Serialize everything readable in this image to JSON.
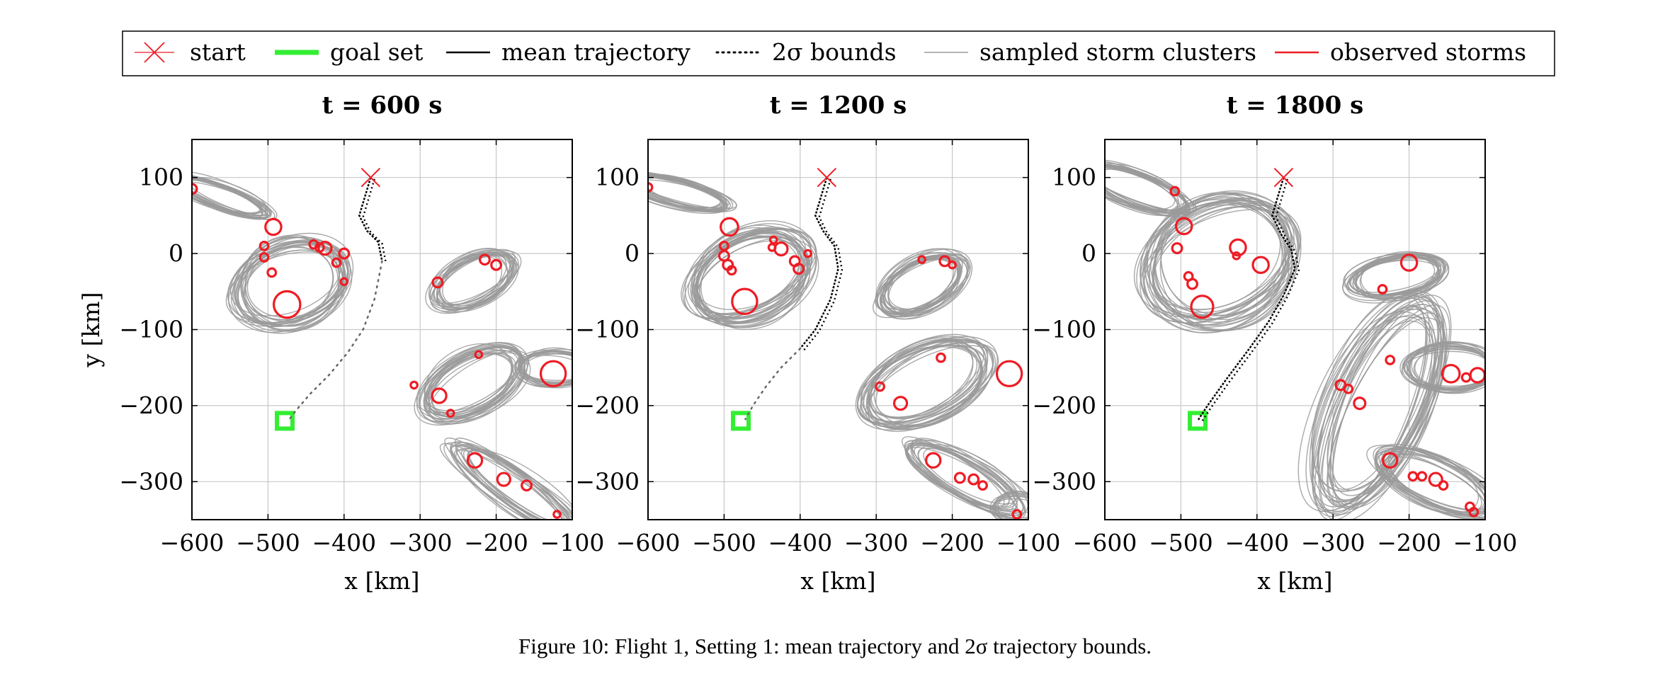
{
  "legend": [
    {
      "label": "start",
      "kind": "x-marker",
      "color": "#ee1c24"
    },
    {
      "label": "goal set",
      "kind": "thick-line",
      "color": "#33ee33"
    },
    {
      "label": "mean trajectory",
      "kind": "line",
      "color": "#000000"
    },
    {
      "label": "2σ bounds",
      "kind": "dotted",
      "color": "#000000"
    },
    {
      "label": "sampled storm clusters",
      "kind": "line",
      "color": "#9a9a9a"
    },
    {
      "label": "observed storms",
      "kind": "line",
      "color": "#ee1c24"
    }
  ],
  "colors": {
    "storm_cluster": "#9a9a9a",
    "observed": "#ee1c24",
    "goal": "#33ee33",
    "grid": "#c8c8c8"
  },
  "caption": "Figure 10: Flight 1, Setting 1: mean trajectory and 2σ trajectory bounds.",
  "chart_data": [
    {
      "type": "scatter",
      "title": "t = 600 s",
      "xlabel": "x [km]",
      "ylabel": "y [km]",
      "xlim": [
        -600,
        -100
      ],
      "ylim": [
        -350,
        150
      ],
      "xticks": [
        "−600",
        "−500",
        "−400",
        "−300",
        "−200",
        "−100"
      ],
      "yticks": [
        "100",
        "0",
        "−100",
        "−200",
        "−300"
      ],
      "grid": true,
      "start": [
        -365,
        100
      ],
      "goal": [
        -478,
        -220
      ],
      "mean_trajectory": [
        [
          -365,
          100
        ],
        [
          -380,
          50
        ],
        [
          -370,
          30
        ],
        [
          -355,
          15
        ],
        [
          -350,
          -10
        ]
      ],
      "bounds_dotted": [
        [
          -350,
          -10
        ],
        [
          -360,
          -60
        ],
        [
          -375,
          -100
        ],
        [
          -395,
          -130
        ],
        [
          -420,
          -160
        ],
        [
          -445,
          -185
        ],
        [
          -462,
          -205
        ],
        [
          -472,
          -218
        ]
      ],
      "storm_clusters": [
        {
          "cx": -560,
          "cy": 75,
          "rx": 65,
          "ry": 14,
          "angle": -20,
          "n": 18
        },
        {
          "cx": -470,
          "cy": -40,
          "rx": 72,
          "ry": 52,
          "angle": 20,
          "n": 24
        },
        {
          "cx": -230,
          "cy": -35,
          "rx": 55,
          "ry": 28,
          "angle": 28,
          "n": 20
        },
        {
          "cx": -230,
          "cy": -170,
          "rx": 70,
          "ry": 36,
          "angle": 28,
          "n": 22
        },
        {
          "cx": -125,
          "cy": -150,
          "rx": 45,
          "ry": 22,
          "angle": 0,
          "n": 14
        },
        {
          "cx": -175,
          "cy": -310,
          "rx": 95,
          "ry": 22,
          "angle": -35,
          "n": 18
        }
      ],
      "observed_storms": [
        {
          "x": -600,
          "y": 85,
          "r": 5
        },
        {
          "x": -493,
          "y": 35,
          "r": 9
        },
        {
          "x": -505,
          "y": 10,
          "r": 4
        },
        {
          "x": -505,
          "y": -5,
          "r": 4
        },
        {
          "x": -495,
          "y": -25,
          "r": 4
        },
        {
          "x": -475,
          "y": -67,
          "r": 16
        },
        {
          "x": -440,
          "y": 12,
          "r": 4
        },
        {
          "x": -432,
          "y": 8,
          "r": 4
        },
        {
          "x": -425,
          "y": 7,
          "r": 7
        },
        {
          "x": -410,
          "y": -12,
          "r": 4
        },
        {
          "x": -400,
          "y": 0,
          "r": 5
        },
        {
          "x": -400,
          "y": -37,
          "r": 3
        },
        {
          "x": -277,
          "y": -38,
          "r": 5
        },
        {
          "x": -215,
          "y": -8,
          "r": 5
        },
        {
          "x": -200,
          "y": -15,
          "r": 5
        },
        {
          "x": -308,
          "y": -173,
          "r": 3
        },
        {
          "x": -275,
          "y": -187,
          "r": 8
        },
        {
          "x": -260,
          "y": -210,
          "r": 3
        },
        {
          "x": -223,
          "y": -133,
          "r": 3
        },
        {
          "x": -125,
          "y": -158,
          "r": 15
        },
        {
          "x": -228,
          "y": -272,
          "r": 8
        },
        {
          "x": -190,
          "y": -297,
          "r": 7
        },
        {
          "x": -160,
          "y": -305,
          "r": 5
        },
        {
          "x": -120,
          "y": -343,
          "r": 3
        }
      ]
    },
    {
      "type": "scatter",
      "title": "t = 1200 s",
      "xlabel": "x [km]",
      "xlim": [
        -600,
        -100
      ],
      "ylim": [
        -350,
        150
      ],
      "xticks": [
        "−600",
        "−500",
        "−400",
        "−300",
        "−200",
        "−100"
      ],
      "yticks": [
        "100",
        "0",
        "−100",
        "−200",
        "−300"
      ],
      "grid": true,
      "start": [
        -365,
        100
      ],
      "goal": [
        -478,
        -220
      ],
      "mean_trajectory": [
        [
          -365,
          100
        ],
        [
          -380,
          50
        ],
        [
          -370,
          30
        ],
        [
          -355,
          10
        ],
        [
          -350,
          -20
        ],
        [
          -360,
          -60
        ],
        [
          -380,
          -100
        ],
        [
          -400,
          -125
        ]
      ],
      "bounds_dotted": [
        [
          -400,
          -125
        ],
        [
          -425,
          -150
        ],
        [
          -445,
          -175
        ],
        [
          -462,
          -200
        ],
        [
          -472,
          -218
        ]
      ],
      "storm_clusters": [
        {
          "cx": -560,
          "cy": 80,
          "rx": 65,
          "ry": 16,
          "angle": -15,
          "n": 20
        },
        {
          "cx": -465,
          "cy": -30,
          "rx": 80,
          "ry": 55,
          "angle": 25,
          "n": 26
        },
        {
          "cx": -240,
          "cy": -40,
          "rx": 58,
          "ry": 32,
          "angle": 28,
          "n": 22
        },
        {
          "cx": -235,
          "cy": -170,
          "rx": 85,
          "ry": 45,
          "angle": 25,
          "n": 24
        },
        {
          "cx": -185,
          "cy": -295,
          "rx": 80,
          "ry": 25,
          "angle": -30,
          "n": 18
        },
        {
          "cx": -115,
          "cy": -335,
          "rx": 30,
          "ry": 18,
          "angle": 0,
          "n": 10
        }
      ],
      "observed_storms": [
        {
          "x": -600,
          "y": 87,
          "r": 4
        },
        {
          "x": -493,
          "y": 35,
          "r": 10
        },
        {
          "x": -500,
          "y": 10,
          "r": 4
        },
        {
          "x": -500,
          "y": -3,
          "r": 5
        },
        {
          "x": -495,
          "y": -15,
          "r": 5
        },
        {
          "x": -490,
          "y": -22,
          "r": 4
        },
        {
          "x": -473,
          "y": -63,
          "r": 15
        },
        {
          "x": -435,
          "y": 18,
          "r": 3
        },
        {
          "x": -437,
          "y": 8,
          "r": 3
        },
        {
          "x": -425,
          "y": 6,
          "r": 7
        },
        {
          "x": -407,
          "y": -10,
          "r": 5
        },
        {
          "x": -402,
          "y": -20,
          "r": 5
        },
        {
          "x": -390,
          "y": 0,
          "r": 3
        },
        {
          "x": -240,
          "y": -8,
          "r": 3
        },
        {
          "x": -210,
          "y": -10,
          "r": 5
        },
        {
          "x": -200,
          "y": -15,
          "r": 3
        },
        {
          "x": -295,
          "y": -175,
          "r": 4
        },
        {
          "x": -268,
          "y": -197,
          "r": 7
        },
        {
          "x": -215,
          "y": -137,
          "r": 4
        },
        {
          "x": -125,
          "y": -158,
          "r": 15
        },
        {
          "x": -225,
          "y": -272,
          "r": 8
        },
        {
          "x": -190,
          "y": -295,
          "r": 5
        },
        {
          "x": -172,
          "y": -297,
          "r": 5
        },
        {
          "x": -160,
          "y": -305,
          "r": 4
        },
        {
          "x": -115,
          "y": -343,
          "r": 4
        }
      ]
    },
    {
      "type": "scatter",
      "title": "t = 1800 s",
      "xlabel": "x [km]",
      "xlim": [
        -600,
        -100
      ],
      "ylim": [
        -350,
        150
      ],
      "xticks": [
        "−600",
        "−500",
        "−400",
        "−300",
        "−200",
        "−100"
      ],
      "yticks": [
        "100",
        "0",
        "−100",
        "−200",
        "−300"
      ],
      "grid": true,
      "start": [
        -365,
        100
      ],
      "goal": [
        -478,
        -220
      ],
      "mean_trajectory": [
        [
          -365,
          100
        ],
        [
          -380,
          50
        ],
        [
          -368,
          25
        ],
        [
          -355,
          5
        ],
        [
          -350,
          -20
        ],
        [
          -365,
          -55
        ],
        [
          -385,
          -90
        ],
        [
          -410,
          -125
        ],
        [
          -440,
          -165
        ],
        [
          -465,
          -200
        ],
        [
          -478,
          -220
        ]
      ],
      "bounds_dotted": [],
      "storm_clusters": [
        {
          "cx": -560,
          "cy": 85,
          "rx": 70,
          "ry": 20,
          "angle": -20,
          "n": 22
        },
        {
          "cx": -450,
          "cy": -10,
          "rx": 95,
          "ry": 75,
          "angle": 25,
          "n": 28
        },
        {
          "cx": -215,
          "cy": -30,
          "rx": 60,
          "ry": 25,
          "angle": 10,
          "n": 20
        },
        {
          "cx": -240,
          "cy": -200,
          "rx": 140,
          "ry": 55,
          "angle": 65,
          "n": 26
        },
        {
          "cx": -145,
          "cy": -150,
          "rx": 55,
          "ry": 28,
          "angle": 0,
          "n": 16
        },
        {
          "cx": -165,
          "cy": -300,
          "rx": 80,
          "ry": 30,
          "angle": -25,
          "n": 18
        }
      ],
      "observed_storms": [
        {
          "x": -508,
          "y": 82,
          "r": 4
        },
        {
          "x": -496,
          "y": 36,
          "r": 9
        },
        {
          "x": -505,
          "y": 7,
          "r": 5
        },
        {
          "x": -490,
          "y": -30,
          "r": 4
        },
        {
          "x": -485,
          "y": -40,
          "r": 5
        },
        {
          "x": -472,
          "y": -70,
          "r": 13
        },
        {
          "x": -425,
          "y": 8,
          "r": 9
        },
        {
          "x": -427,
          "y": -3,
          "r": 3
        },
        {
          "x": -395,
          "y": -15,
          "r": 9
        },
        {
          "x": -235,
          "y": -47,
          "r": 4
        },
        {
          "x": -200,
          "y": -12,
          "r": 9
        },
        {
          "x": -225,
          "y": -140,
          "r": 4
        },
        {
          "x": -290,
          "y": -173,
          "r": 5
        },
        {
          "x": -280,
          "y": -178,
          "r": 4
        },
        {
          "x": -265,
          "y": -197,
          "r": 6
        },
        {
          "x": -145,
          "y": -158,
          "r": 10
        },
        {
          "x": -125,
          "y": -163,
          "r": 4
        },
        {
          "x": -110,
          "y": -160,
          "r": 8
        },
        {
          "x": -225,
          "y": -272,
          "r": 8
        },
        {
          "x": -195,
          "y": -293,
          "r": 4
        },
        {
          "x": -183,
          "y": -293,
          "r": 4
        },
        {
          "x": -165,
          "y": -297,
          "r": 7
        },
        {
          "x": -155,
          "y": -305,
          "r": 4
        },
        {
          "x": -120,
          "y": -333,
          "r": 4
        },
        {
          "x": -115,
          "y": -340,
          "r": 4
        }
      ]
    }
  ]
}
